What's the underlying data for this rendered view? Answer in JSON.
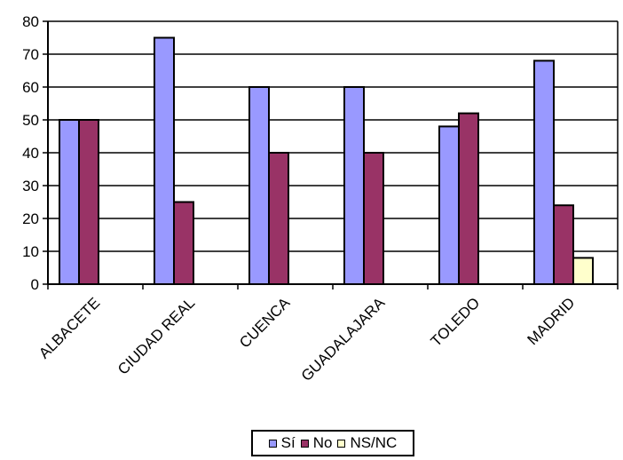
{
  "chart_data": {
    "type": "bar",
    "categories": [
      "ALBACETE",
      "CIUDAD REAL",
      "CUENCA",
      "GUADALAJARA",
      "TOLEDO",
      "MADRID"
    ],
    "series": [
      {
        "name": "Sí",
        "color": "#9999ff",
        "values": [
          50,
          75,
          60,
          60,
          48,
          68
        ]
      },
      {
        "name": "No",
        "color": "#993366",
        "values": [
          50,
          25,
          40,
          40,
          52,
          24
        ]
      },
      {
        "name": "NS/NC",
        "color": "#ffffcc",
        "values": [
          0,
          0,
          0,
          0,
          0,
          8
        ]
      }
    ],
    "ylim": [
      0,
      80
    ],
    "yticks": [
      "0",
      "10",
      "20",
      "30",
      "40",
      "50",
      "60",
      "70",
      "80"
    ],
    "grid": true,
    "legend_position": "bottom",
    "title": "",
    "xlabel": "",
    "ylabel": ""
  }
}
